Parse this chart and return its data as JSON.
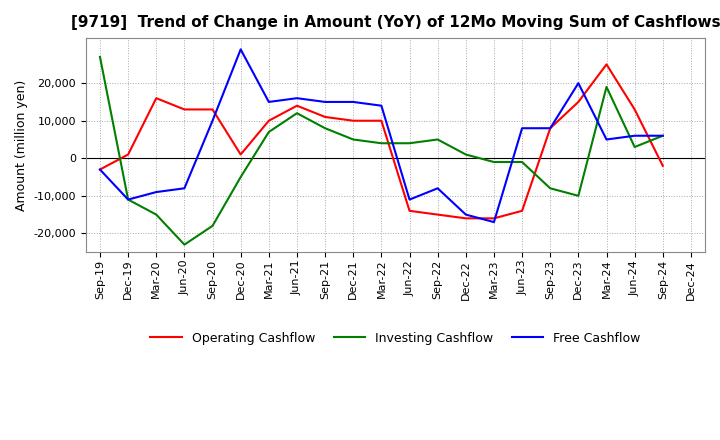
{
  "title": "[9719]  Trend of Change in Amount (YoY) of 12Mo Moving Sum of Cashflows",
  "ylabel": "Amount (million yen)",
  "x_labels": [
    "Sep-19",
    "Dec-19",
    "Mar-20",
    "Jun-20",
    "Sep-20",
    "Dec-20",
    "Mar-21",
    "Jun-21",
    "Sep-21",
    "Dec-21",
    "Mar-22",
    "Jun-22",
    "Sep-22",
    "Dec-22",
    "Mar-23",
    "Jun-23",
    "Sep-23",
    "Dec-23",
    "Mar-24",
    "Jun-24",
    "Sep-24",
    "Dec-24"
  ],
  "operating": [
    -3000,
    1000,
    16000,
    13000,
    13000,
    1000,
    10000,
    14000,
    11000,
    10000,
    10000,
    -14000,
    -15000,
    -16000,
    -16000,
    -14000,
    8000,
    15000,
    25000,
    13000,
    -2000,
    null
  ],
  "investing": [
    27000,
    -11000,
    -15000,
    -23000,
    -18000,
    -5000,
    7000,
    12000,
    8000,
    5000,
    4000,
    4000,
    5000,
    1000,
    -1000,
    -1000,
    -8000,
    -10000,
    19000,
    3000,
    6000,
    null
  ],
  "free": [
    -3000,
    -11000,
    -9000,
    -8000,
    10000,
    29000,
    15000,
    16000,
    15000,
    15000,
    14000,
    -11000,
    -8000,
    -15000,
    -17000,
    8000,
    8000,
    20000,
    5000,
    6000,
    6000,
    null
  ],
  "colors": {
    "operating": "#ff0000",
    "investing": "#008000",
    "free": "#0000ff"
  },
  "ylim": [
    -25000,
    32000
  ],
  "yticks": [
    -20000,
    -10000,
    0,
    10000,
    20000
  ],
  "grid_color": "#aaaaaa",
  "grid_linestyle": ":",
  "background_color": "#ffffff",
  "title_fontsize": 11,
  "axis_fontsize": 9,
  "tick_fontsize": 8,
  "legend_labels": [
    "Operating Cashflow",
    "Investing Cashflow",
    "Free Cashflow"
  ]
}
